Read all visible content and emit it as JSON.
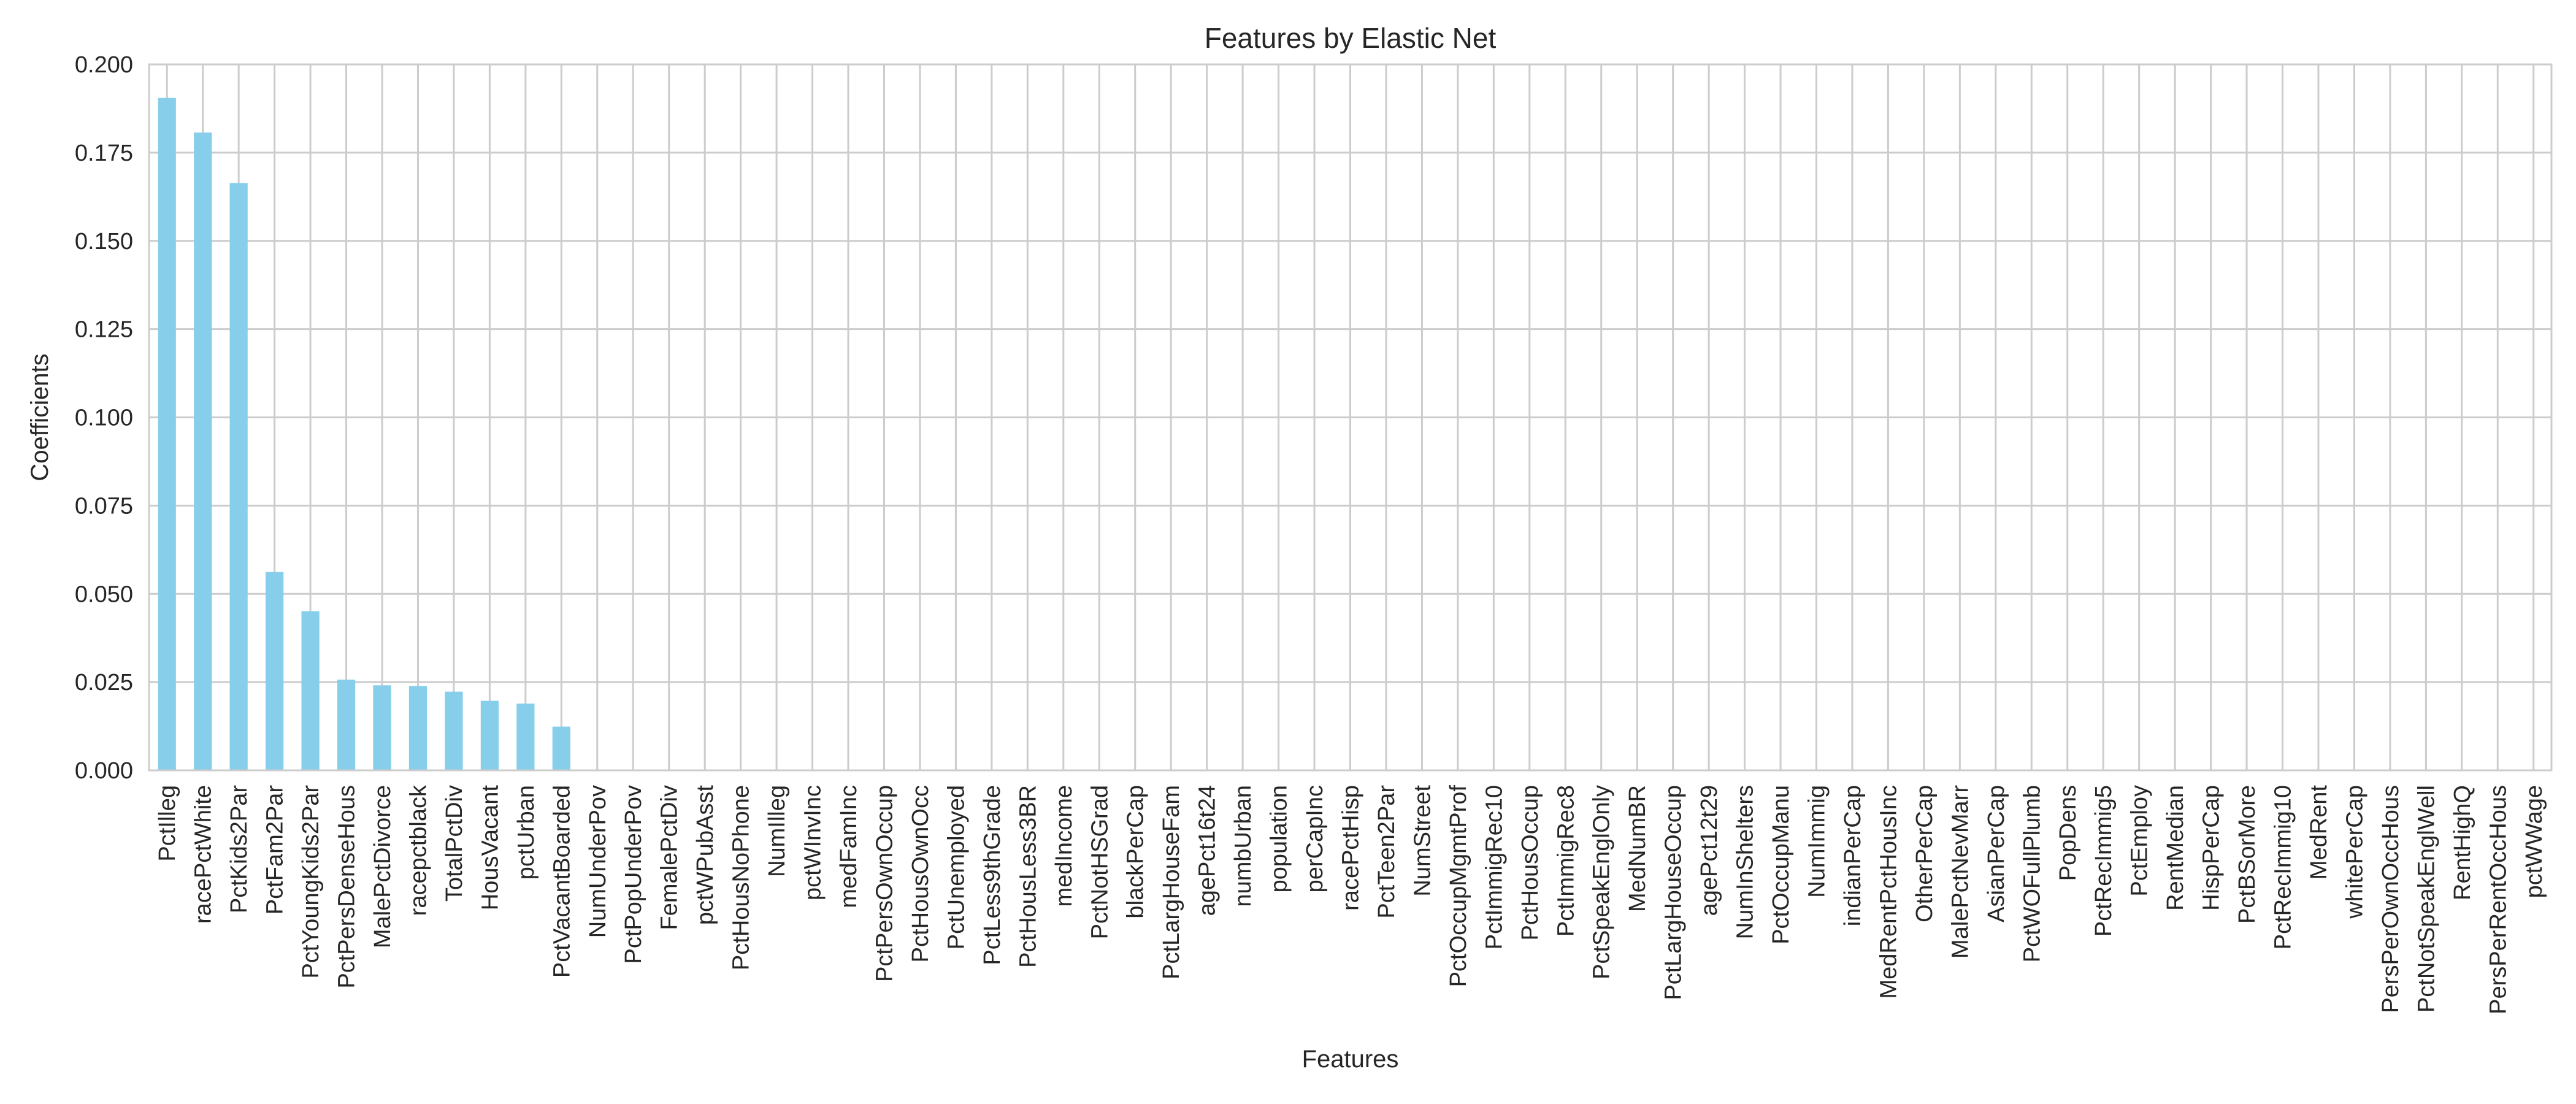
{
  "chart_data": {
    "type": "bar",
    "title": "Features by Elastic Net",
    "xlabel": "Features",
    "ylabel": "Coefficients",
    "ylim": [
      0,
      0.2
    ],
    "yticks": [
      0.0,
      0.025,
      0.05,
      0.075,
      0.1,
      0.125,
      0.15,
      0.175,
      0.2
    ],
    "ytick_labels": [
      "0.000",
      "0.025",
      "0.050",
      "0.075",
      "0.100",
      "0.125",
      "0.150",
      "0.175",
      "0.200"
    ],
    "grid": true,
    "bar_color": "#87ceeb",
    "categories": [
      "PctIlleg",
      "racePctWhite",
      "PctKids2Par",
      "PctFam2Par",
      "PctYoungKids2Par",
      "PctPersDenseHous",
      "MalePctDivorce",
      "racepctblack",
      "TotalPctDiv",
      "HousVacant",
      "pctUrban",
      "PctVacantBoarded",
      "NumUnderPov",
      "PctPopUnderPov",
      "FemalePctDiv",
      "pctWPubAsst",
      "PctHousNoPhone",
      "NumIlleg",
      "pctWInvInc",
      "medFamInc",
      "PctPersOwnOccup",
      "PctHousOwnOcc",
      "PctUnemployed",
      "PctLess9thGrade",
      "PctHousLess3BR",
      "medIncome",
      "PctNotHSGrad",
      "blackPerCap",
      "PctLargHouseFam",
      "agePct16t24",
      "numbUrban",
      "population",
      "perCapInc",
      "racePctHisp",
      "PctTeen2Par",
      "NumStreet",
      "PctOccupMgmtProf",
      "PctImmigRec10",
      "PctHousOccup",
      "PctImmigRec8",
      "PctSpeakEnglOnly",
      "MedNumBR",
      "PctLargHouseOccup",
      "agePct12t29",
      "NumInShelters",
      "PctOccupManu",
      "NumImmig",
      "indianPerCap",
      "MedRentPctHousInc",
      "OtherPerCap",
      "MalePctNevMarr",
      "AsianPerCap",
      "PctWOFullPlumb",
      "PopDens",
      "PctRecImmig5",
      "PctEmploy",
      "RentMedian",
      "HispPerCap",
      "PctBSorMore",
      "PctRecImmig10",
      "MedRent",
      "whitePerCap",
      "PersPerOwnOccHous",
      "PctNotSpeakEnglWell",
      "RentHighQ",
      "PersPerRentOccHous",
      "pctWWage"
    ],
    "values": [
      0.1905,
      0.1807,
      0.1664,
      0.0562,
      0.0451,
      0.0257,
      0.0241,
      0.0239,
      0.0223,
      0.0197,
      0.0189,
      0.0124,
      0,
      0,
      0,
      0,
      0,
      0,
      0,
      0,
      0,
      0,
      0,
      0,
      0,
      0,
      0,
      0,
      0,
      0,
      0,
      0,
      0,
      0,
      0,
      0,
      0,
      0,
      0,
      0,
      0,
      0,
      0,
      0,
      0,
      0,
      0,
      0,
      0,
      0,
      0,
      0,
      0,
      0,
      0,
      0,
      0,
      0,
      0,
      0,
      0,
      0,
      0,
      0,
      0,
      0,
      0
    ]
  }
}
